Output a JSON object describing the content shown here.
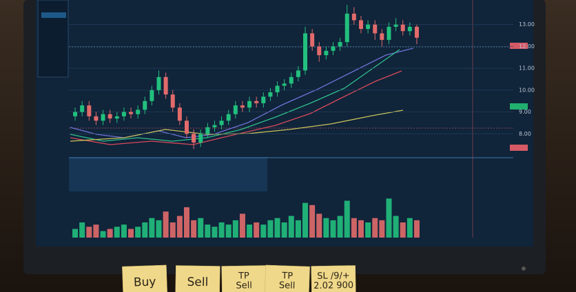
{
  "chart_data": {
    "type": "candlestick",
    "open": [
      8.8,
      9.0,
      9.3,
      8.8,
      8.6,
      8.9,
      8.7,
      8.8,
      9.0,
      8.9,
      9.1,
      9.5,
      10.0,
      10.6,
      9.8,
      9.2,
      8.6,
      8.0,
      7.6,
      8.0,
      8.3,
      8.4,
      8.6,
      8.9,
      9.3,
      9.2,
      9.5,
      9.4,
      9.7,
      9.9,
      10.2,
      10.3,
      10.6,
      10.9,
      12.6,
      12.0,
      11.6,
      11.8,
      12.0,
      12.2,
      13.5,
      13.2,
      12.8,
      13.0,
      12.6,
      12.3,
      12.9,
      13.0,
      12.7,
      12.9
    ],
    "high": [
      9.2,
      9.5,
      9.5,
      9.0,
      9.1,
      9.1,
      9.0,
      9.2,
      9.2,
      9.3,
      9.7,
      10.2,
      10.9,
      10.8,
      10.0,
      9.4,
      8.8,
      8.2,
      8.2,
      8.5,
      8.6,
      8.8,
      9.1,
      9.5,
      9.5,
      9.7,
      9.7,
      9.9,
      10.1,
      10.4,
      10.5,
      10.8,
      11.1,
      12.9,
      12.8,
      12.2,
      12.0,
      12.2,
      12.4,
      13.9,
      13.8,
      13.4,
      13.2,
      13.2,
      12.8,
      13.1,
      13.3,
      13.2,
      13.1,
      13.0
    ],
    "low": [
      8.6,
      8.8,
      8.6,
      8.4,
      8.4,
      8.5,
      8.5,
      8.6,
      8.7,
      8.7,
      8.9,
      9.3,
      9.8,
      9.6,
      9.0,
      8.4,
      7.8,
      7.3,
      7.4,
      7.8,
      8.1,
      8.2,
      8.4,
      8.7,
      9.0,
      9.0,
      9.2,
      9.2,
      9.5,
      9.7,
      10.0,
      10.1,
      10.4,
      10.7,
      11.8,
      11.3,
      11.4,
      11.6,
      11.8,
      12.0,
      13.0,
      12.6,
      12.6,
      12.3,
      12.0,
      12.1,
      12.7,
      12.5,
      12.5,
      12.1
    ],
    "close": [
      9.0,
      9.3,
      8.8,
      8.6,
      8.9,
      8.7,
      8.8,
      9.0,
      8.9,
      9.1,
      9.5,
      10.0,
      10.6,
      9.8,
      9.2,
      8.6,
      8.0,
      7.6,
      8.0,
      8.3,
      8.4,
      8.6,
      8.9,
      9.3,
      9.2,
      9.5,
      9.4,
      9.7,
      9.9,
      10.2,
      10.3,
      10.6,
      10.9,
      12.6,
      12.0,
      11.6,
      11.8,
      12.0,
      12.2,
      13.5,
      13.2,
      12.8,
      13.0,
      12.6,
      12.3,
      12.9,
      13.0,
      12.7,
      12.9,
      12.4
    ],
    "volume": [
      20,
      35,
      25,
      30,
      15,
      20,
      25,
      30,
      20,
      25,
      35,
      45,
      40,
      60,
      35,
      50,
      70,
      40,
      45,
      30,
      25,
      35,
      30,
      40,
      55,
      30,
      35,
      30,
      40,
      45,
      35,
      50,
      40,
      80,
      75,
      55,
      45,
      40,
      50,
      85,
      45,
      40,
      35,
      45,
      40,
      90,
      50,
      35,
      45,
      40
    ],
    "volume_ylim": [
      0,
      100
    ],
    "up_color": "#22c07e",
    "down_color": "#e26b6b",
    "ylim": [
      7,
      14
    ],
    "yticks": [
      {
        "value": 8,
        "label": "8.00"
      },
      {
        "value": 9,
        "label": "9.00"
      },
      {
        "value": 10,
        "label": "10.00"
      },
      {
        "value": 11,
        "label": "11.00"
      },
      {
        "value": 12,
        "label": "12.00"
      },
      {
        "value": 13,
        "label": "13.00"
      }
    ],
    "grid": true
  },
  "notes": [
    [
      "Buy"
    ],
    [
      "Sell"
    ],
    [
      "TP",
      "Sell"
    ],
    [
      "TP",
      "Sell"
    ],
    [
      "SL /9/+",
      "2.02 900"
    ]
  ]
}
